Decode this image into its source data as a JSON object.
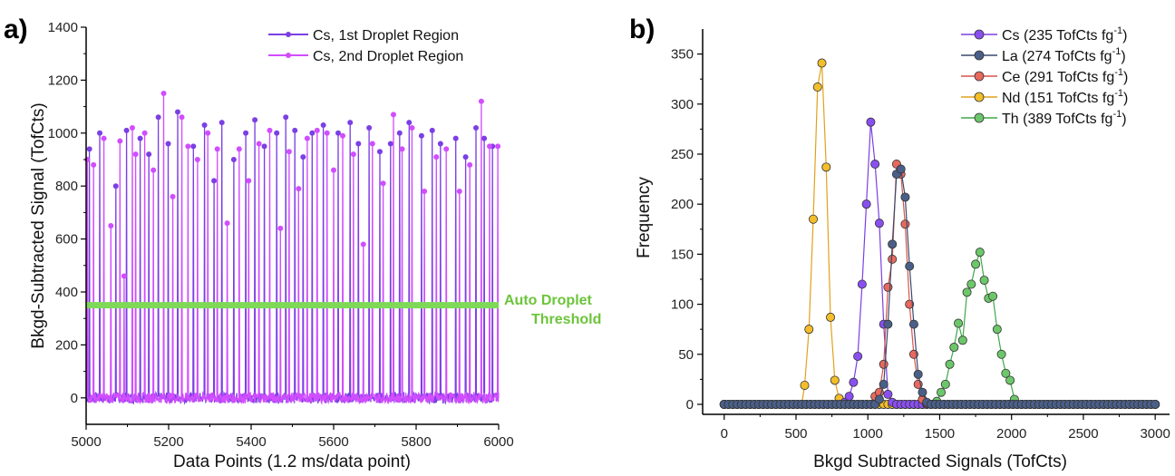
{
  "chart_data": [
    {
      "panel": "a)",
      "type": "line",
      "xlabel": "Data Points (1.2 ms/data point)",
      "ylabel": "Bkgd-Subtracted Signal (TofCts)",
      "xlim": [
        5000,
        6000
      ],
      "ylim": [
        -100,
        1400
      ],
      "xticks": [
        5000,
        5200,
        5400,
        5600,
        5800,
        6000
      ],
      "yticks": [
        0,
        200,
        400,
        600,
        800,
        1000,
        1200,
        1400
      ],
      "threshold": {
        "value": 350,
        "label_line1": "Auto Droplet",
        "label_line2": "Threshold",
        "color": "#7ed957"
      },
      "series": [
        {
          "name": "Cs, 1st Droplet Region",
          "color": "#7b3fe4",
          "peaks": [
            [
              5008,
              940
            ],
            [
              5033,
              1000
            ],
            [
              5072,
              800
            ],
            [
              5098,
              1010
            ],
            [
              5131,
              980
            ],
            [
              5152,
              920
            ],
            [
              5175,
              1060
            ],
            [
              5199,
              960
            ],
            [
              5222,
              1080
            ],
            [
              5260,
              950
            ],
            [
              5287,
              1030
            ],
            [
              5310,
              820
            ],
            [
              5329,
              1040
            ],
            [
              5358,
              900
            ],
            [
              5387,
              1000
            ],
            [
              5409,
              1050
            ],
            [
              5432,
              950
            ],
            [
              5462,
              1000
            ],
            [
              5484,
              1060
            ],
            [
              5506,
              1010
            ],
            [
              5526,
              910
            ],
            [
              5548,
              1000
            ],
            [
              5575,
              1030
            ],
            [
              5611,
              1000
            ],
            [
              5640,
              1040
            ],
            [
              5660,
              960
            ],
            [
              5686,
              1020
            ],
            [
              5712,
              930
            ],
            [
              5738,
              960
            ],
            [
              5760,
              1000
            ],
            [
              5783,
              1040
            ],
            [
              5813,
              990
            ],
            [
              5839,
              1010
            ],
            [
              5859,
              960
            ],
            [
              5896,
              980
            ],
            [
              5920,
              910
            ],
            [
              5945,
              1020
            ],
            [
              5965,
              980
            ],
            [
              5985,
              950
            ]
          ]
        },
        {
          "name": "Cs, 2nd Droplet Region",
          "color": "#d14dff",
          "peaks": [
            [
              5003,
              900
            ],
            [
              5018,
              880
            ],
            [
              5043,
              980
            ],
            [
              5060,
              650
            ],
            [
              5082,
              970
            ],
            [
              5092,
              460
            ],
            [
              5112,
              1020
            ],
            [
              5120,
              920
            ],
            [
              5142,
              1000
            ],
            [
              5163,
              860
            ],
            [
              5188,
              1150
            ],
            [
              5210,
              760
            ],
            [
              5232,
              1060
            ],
            [
              5247,
              950
            ],
            [
              5270,
              900
            ],
            [
              5295,
              1000
            ],
            [
              5318,
              940
            ],
            [
              5342,
              660
            ],
            [
              5371,
              940
            ],
            [
              5394,
              820
            ],
            [
              5419,
              960
            ],
            [
              5445,
              1010
            ],
            [
              5471,
              640
            ],
            [
              5492,
              930
            ],
            [
              5515,
              790
            ],
            [
              5536,
              980
            ],
            [
              5560,
              1010
            ],
            [
              5584,
              1000
            ],
            [
              5600,
              860
            ],
            [
              5622,
              990
            ],
            [
              5648,
              920
            ],
            [
              5672,
              580
            ],
            [
              5694,
              960
            ],
            [
              5720,
              810
            ],
            [
              5745,
              1070
            ],
            [
              5766,
              940
            ],
            [
              5790,
              1020
            ],
            [
              5820,
              780
            ],
            [
              5849,
              910
            ],
            [
              5873,
              940
            ],
            [
              5905,
              780
            ],
            [
              5930,
              880
            ],
            [
              5958,
              1120
            ],
            [
              5978,
              950
            ],
            [
              5998,
              950
            ]
          ]
        }
      ]
    },
    {
      "panel": "b)",
      "type": "line",
      "xlabel": "Bkgd Subtracted Signals (TofCts)",
      "ylabel": "Frequency",
      "xlim": [
        -150,
        3100
      ],
      "ylim": [
        -10,
        375
      ],
      "xticks": [
        0,
        500,
        1000,
        1500,
        2000,
        2500,
        3000
      ],
      "yticks": [
        0,
        50,
        100,
        150,
        200,
        250,
        300,
        350
      ],
      "series": [
        {
          "name": "Cs (235 TofCts fg-1)",
          "legend_main": "Cs (235 TofCts fg",
          "legend_sup": "-1",
          "legend_close": ")",
          "color": "#7b3fe4",
          "fill": "#8a4ff0",
          "x": [
            840,
            870,
            900,
            930,
            960,
            990,
            1020,
            1050,
            1080,
            1110,
            1140,
            1170
          ],
          "y": [
            2,
            8,
            22,
            48,
            120,
            200,
            282,
            240,
            181,
            80,
            10,
            2
          ]
        },
        {
          "name": "La (274 TofCts fg-1)",
          "legend_main": "La (274 TofCts fg",
          "legend_sup": "-1",
          "legend_close": ")",
          "color": "#3a4a6b",
          "fill": "#4a5f88",
          "x": [
            1080,
            1110,
            1140,
            1170,
            1200,
            1230,
            1260,
            1290,
            1320,
            1350,
            1380,
            1410
          ],
          "y": [
            5,
            20,
            80,
            160,
            230,
            235,
            207,
            138,
            80,
            30,
            12,
            2
          ]
        },
        {
          "name": "Ce (291 TofCts fg-1)",
          "legend_main": "Ce (291 TofCts fg",
          "legend_sup": "-1",
          "legend_close": ")",
          "color": "#d9544a",
          "fill": "#e8695d",
          "x": [
            1050,
            1080,
            1110,
            1140,
            1170,
            1200,
            1230,
            1260,
            1290,
            1320,
            1350,
            1380,
            1410
          ],
          "y": [
            8,
            12,
            40,
            117,
            145,
            240,
            230,
            180,
            100,
            50,
            20,
            5,
            1
          ]
        },
        {
          "name": "Nd (151 TofCts fg-1)",
          "legend_main": "Nd (151 TofCts fg",
          "legend_sup": "-1",
          "legend_close": ")",
          "color": "#e0a21c",
          "fill": "#f3be2a",
          "x": [
            560,
            590,
            620,
            650,
            680,
            710,
            740,
            770,
            800
          ],
          "y": [
            19,
            75,
            185,
            317,
            341,
            237,
            87,
            24,
            6
          ]
        },
        {
          "name": "Th (389 TofCts fg-1)",
          "legend_main": "Th (389 TofCts fg",
          "legend_sup": "-1",
          "legend_close": ")",
          "color": "#3ea84a",
          "fill": "#6cc76a",
          "x": [
            1480,
            1510,
            1540,
            1570,
            1600,
            1630,
            1660,
            1690,
            1720,
            1750,
            1780,
            1810,
            1840,
            1870,
            1900,
            1930,
            1960,
            1990,
            2020
          ],
          "y": [
            3,
            12,
            20,
            40,
            57,
            81,
            64,
            112,
            120,
            140,
            152,
            124,
            106,
            108,
            75,
            50,
            31,
            24,
            5
          ]
        }
      ]
    }
  ]
}
